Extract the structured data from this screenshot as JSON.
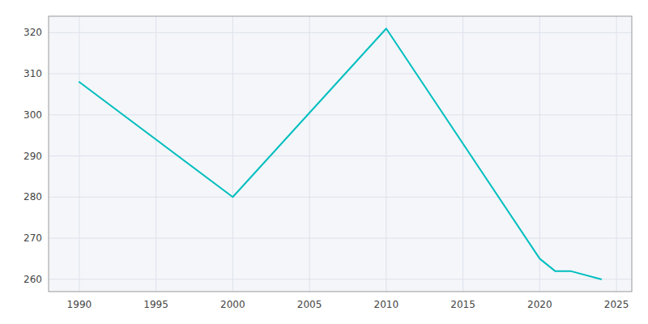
{
  "chart_data": {
    "type": "line",
    "x": [
      1990,
      2000,
      2010,
      2020,
      2021,
      2022,
      2024
    ],
    "values": [
      308,
      280,
      321,
      265,
      262,
      262,
      260
    ],
    "color": "#00BEBE",
    "xlim": [
      1988,
      2026
    ],
    "ylim": [
      257,
      324
    ],
    "xticks": [
      1990,
      1995,
      2000,
      2005,
      2010,
      2015,
      2020,
      2025
    ],
    "yticks": [
      260,
      270,
      280,
      290,
      300,
      310,
      320
    ],
    "grid": true
  }
}
